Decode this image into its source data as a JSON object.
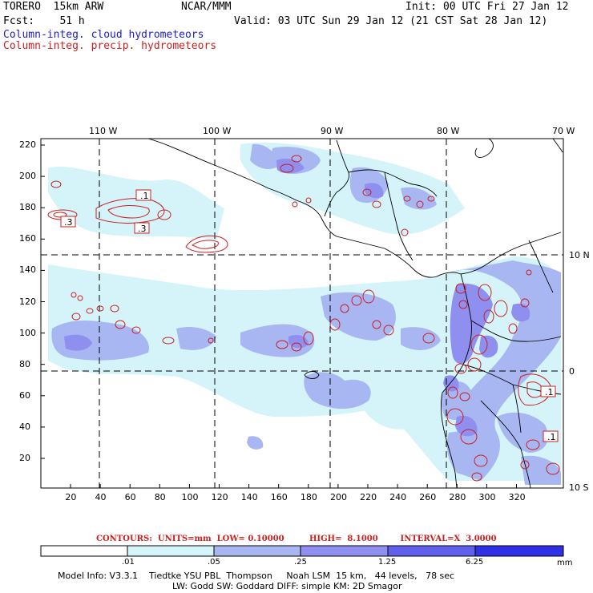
{
  "header": {
    "model": "TORERO  15km ARW",
    "org": "NCAR/MMM",
    "init": "Init: 00 UTC Fri 27 Jan 12",
    "fcst": "Fcst:    51 h",
    "valid": "Valid: 03 UTC Sun 29 Jan 12 (21 CST Sat 28 Jan 12)",
    "field1": "Column-integ. cloud hydrometeors",
    "field2": "Column-integ. precip. hydrometeors"
  },
  "colors": {
    "field1": "#1c1cc8",
    "field2": "#cc1f1f",
    "shade_levels": [
      "#ffffff",
      "#d4f4fa",
      "#a8b6f2",
      "#8f8ff0",
      "#6060ec",
      "#2f2fe6"
    ]
  },
  "axes": {
    "top_lon": [
      "110 W",
      "100 W",
      "90 W",
      "80 W",
      "70 W"
    ],
    "right_lat": [
      "10 N",
      "0",
      "10 S"
    ],
    "left_grid": [
      "220",
      "200",
      "180",
      "160",
      "140",
      "120",
      "100",
      "80",
      "60",
      "40",
      "20"
    ],
    "bottom_grid": [
      "20",
      "40",
      "60",
      "80",
      "100",
      "120",
      "140",
      "160",
      "180",
      "200",
      "220",
      "240",
      "260",
      "280",
      "300",
      "320"
    ]
  },
  "contour_labels": [
    ".1",
    ".3",
    ".3",
    ".1",
    ".1"
  ],
  "contour_info": {
    "text": "CONTOURS:  UNITS=mm  LOW= 0.10000         HIGH=  8.1000        INTERVAL=X  3.0000"
  },
  "legend": {
    "ticks": [
      ".01",
      ".05",
      ".25",
      "1.25",
      "6.25"
    ],
    "unit": "mm"
  },
  "footer": {
    "line1": "Model Info: V3.3.1    Tiedtke YSU PBL  Thompson     Noah LSM  15 km,   44 levels,   78 sec",
    "line2": "LW: Godd SW: Goddard DIFF: simple KM: 2D Smagor"
  }
}
